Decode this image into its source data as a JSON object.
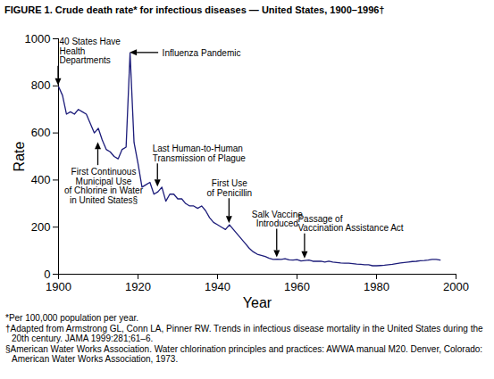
{
  "chart_data": {
    "type": "line",
    "title": "FIGURE 1. Crude death rate* for infectious diseases — United States, 1900–1996†",
    "x_label": "Year",
    "y_label": "Rate",
    "color": "#1c1c7a",
    "x": [
      1900,
      1901,
      1902,
      1903,
      1904,
      1905,
      1906,
      1907,
      1908,
      1909,
      1910,
      1911,
      1912,
      1913,
      1914,
      1915,
      1916,
      1917,
      1918,
      1919,
      1920,
      1921,
      1922,
      1923,
      1924,
      1925,
      1926,
      1927,
      1928,
      1929,
      1930,
      1931,
      1932,
      1933,
      1934,
      1935,
      1936,
      1937,
      1938,
      1939,
      1940,
      1941,
      1942,
      1943,
      1944,
      1945,
      1946,
      1947,
      1948,
      1949,
      1950,
      1951,
      1952,
      1953,
      1954,
      1955,
      1956,
      1957,
      1958,
      1959,
      1960,
      1961,
      1962,
      1963,
      1964,
      1965,
      1966,
      1967,
      1968,
      1969,
      1970,
      1971,
      1972,
      1973,
      1974,
      1975,
      1976,
      1977,
      1978,
      1979,
      1980,
      1981,
      1982,
      1983,
      1984,
      1985,
      1986,
      1987,
      1988,
      1989,
      1990,
      1991,
      1992,
      1993,
      1994,
      1995,
      1996
    ],
    "values": [
      797,
      760,
      680,
      690,
      680,
      700,
      690,
      680,
      640,
      600,
      620,
      570,
      530,
      520,
      500,
      490,
      530,
      540,
      940,
      560,
      470,
      370,
      380,
      390,
      340,
      350,
      370,
      310,
      340,
      340,
      320,
      320,
      300,
      290,
      290,
      280,
      290,
      270,
      240,
      220,
      210,
      200,
      190,
      210,
      190,
      170,
      150,
      130,
      110,
      95,
      85,
      80,
      75,
      68,
      63,
      64,
      63,
      66,
      61,
      60,
      62,
      56,
      58,
      60,
      55,
      55,
      55,
      52,
      55,
      52,
      50,
      48,
      47,
      47,
      45,
      43,
      42,
      40,
      40,
      36,
      36,
      37,
      38,
      40,
      42,
      45,
      48,
      50,
      52,
      54,
      55,
      57,
      58,
      60,
      63,
      63,
      60
    ],
    "xlim": [
      1900,
      2000
    ],
    "xticks": [
      1900,
      1920,
      1940,
      1960,
      1980,
      2000
    ],
    "ylim": [
      0,
      1000
    ],
    "yticks": [
      0,
      200,
      400,
      600,
      800,
      1000
    ],
    "grid": false,
    "annotations": [
      {
        "text": "40 States Have\nHealth\nDepartments",
        "x": 1900,
        "y": 800
      },
      {
        "text": "Influenza Pandemic",
        "x": 1918,
        "y": 940
      },
      {
        "text": "First Continuous\nMunicipal Use\nof Chlorine in Water\nin United States§",
        "x": 1910,
        "y": 560
      },
      {
        "text": "Last Human-to-Human\nTransmission of Plague",
        "x": 1925,
        "y": 370
      },
      {
        "text": "First Use\nof Penicillin",
        "x": 1943,
        "y": 215
      },
      {
        "text": "Salk Vaccine\nIntroduced",
        "x": 1955,
        "y": 70
      },
      {
        "text": "Passage of\nVaccination Assistance Act",
        "x": 1962,
        "y": 65
      }
    ],
    "notes": [
      "*Per 100,000 population per year.",
      "†Adapted from Armstrong GL, Conn LA, Pinner RW. Trends in infectious disease mortality in the United States during the 20th century. JAMA 1999:281;61–6.",
      "§American Water Works Association. Water chlorination principles and practices: AWWA manual M20. Denver, Colorado: American Water Works Association, 1973."
    ]
  }
}
